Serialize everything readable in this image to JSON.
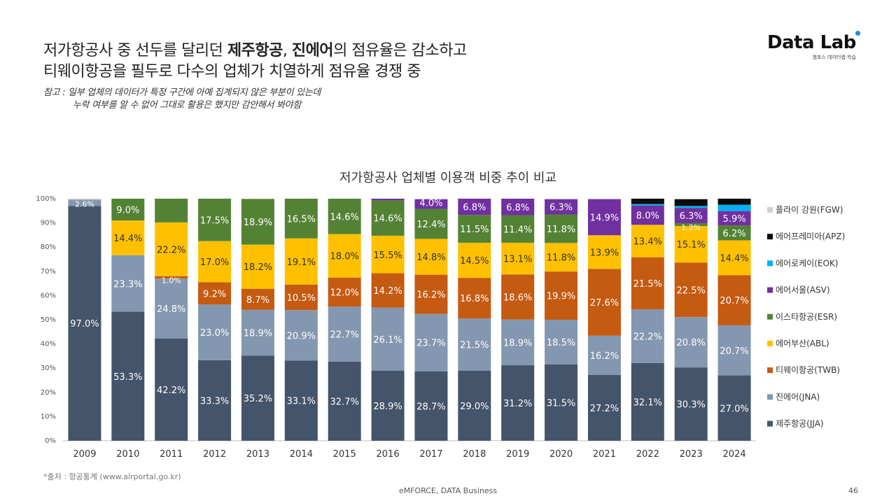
{
  "headline": {
    "line1_pre": "저가항공사 중 선두를 달리던 ",
    "line1_b1": "제주항공",
    "line1_mid": ", ",
    "line1_b2": "진에어",
    "line1_post": "의 점유율은 감소하고",
    "line2": "티웨이항공을 필두로 다수의 업체가 치열하게 점유율 경쟁 중"
  },
  "note": {
    "line1": "참고 : 일부 업체의 데이터가 특정 구간에 아예 집계되지 않은 부분이 있는데",
    "line2": "누락 여부를 알 수 없어 그대로 활용은 했지만 감안해서 봐야함"
  },
  "logo": {
    "main": "Data Lab",
    "sub": "엠포스 데이터랩 학습"
  },
  "source": "*출처 : 항공통계 (www.airportal.go.kr)",
  "footer": "eMFORCE, DATA Business",
  "page_number": "46",
  "chart_data": {
    "type": "bar",
    "stacked": true,
    "title": "저가항공사 업체별 이용객 비중 추이 비교",
    "categories": [
      "2009",
      "2010",
      "2011",
      "2012",
      "2013",
      "2014",
      "2015",
      "2016",
      "2017",
      "2018",
      "2019",
      "2020",
      "2021",
      "2022",
      "2023",
      "2024"
    ],
    "ylim": [
      0,
      100
    ],
    "yticks": [
      "0%",
      "10%",
      "20%",
      "30%",
      "40%",
      "50%",
      "60%",
      "70%",
      "80%",
      "90%",
      "100%"
    ],
    "grid": false,
    "legend_position": "right",
    "series": [
      {
        "name": "제주항공(JJA)",
        "color": "#44546a",
        "label_color": "#ffffff",
        "values": [
          97.0,
          53.3,
          42.2,
          33.3,
          35.2,
          33.1,
          32.7,
          28.9,
          28.7,
          29.0,
          31.2,
          31.5,
          27.2,
          32.1,
          30.3,
          27.0
        ],
        "labels": [
          "97.0%",
          "53.3%",
          "42.2%",
          "33.3%",
          "35.2%",
          "33.1%",
          "32.7%",
          "28.9%",
          "28.7%",
          "29.0%",
          "31.2%",
          "31.5%",
          "27.2%",
          "32.1%",
          "30.3%",
          "27.0%"
        ]
      },
      {
        "name": "진에어(JNA)",
        "color": "#8497b0",
        "label_color": "#ffffff",
        "values": [
          2.6,
          23.3,
          24.8,
          23.0,
          18.9,
          20.9,
          22.7,
          26.1,
          23.7,
          21.5,
          18.9,
          18.5,
          16.2,
          22.2,
          20.8,
          20.7
        ],
        "labels": [
          "2.6%",
          "23.3%",
          "24.8%",
          "23.0%",
          "18.9%",
          "20.9%",
          "22.7%",
          "26.1%",
          "23.7%",
          "21.5%",
          "18.9%",
          "18.5%",
          "16.2%",
          "22.2%",
          "20.8%",
          "20.7%"
        ]
      },
      {
        "name": "티웨이항공(TWB)",
        "color": "#c55a11",
        "label_color": "#ffffff",
        "values": [
          0,
          0,
          1.0,
          9.2,
          8.7,
          10.5,
          12.0,
          14.2,
          16.2,
          16.8,
          18.6,
          19.9,
          27.6,
          21.5,
          22.5,
          20.7
        ],
        "labels": [
          "",
          "",
          "1.0%",
          "9.2%",
          "8.7%",
          "10.5%",
          "12.0%",
          "14.2%",
          "16.2%",
          "16.8%",
          "18.6%",
          "19.9%",
          "27.6%",
          "21.5%",
          "22.5%",
          "20.7%"
        ]
      },
      {
        "name": "에어부산(ABL)",
        "color": "#ffc000",
        "label_color": "#333333",
        "values": [
          0,
          14.4,
          22.2,
          17.0,
          18.2,
          19.1,
          18.0,
          15.5,
          14.8,
          14.5,
          13.1,
          11.8,
          13.9,
          13.4,
          15.1,
          14.4
        ],
        "labels": [
          "",
          "14.4%",
          "22.2%",
          "17.0%",
          "18.2%",
          "19.1%",
          "18.0%",
          "15.5%",
          "14.8%",
          "14.5%",
          "13.1%",
          "11.8%",
          "13.9%",
          "13.4%",
          "15.1%",
          "14.4%"
        ]
      },
      {
        "name": "이스타항공(ESR)",
        "color": "#548235",
        "label_color": "#ffffff",
        "values": [
          0,
          9.0,
          9.8,
          17.5,
          18.9,
          16.5,
          14.6,
          14.6,
          12.4,
          11.5,
          11.4,
          11.8,
          0,
          0,
          1.2,
          6.2
        ],
        "labels": [
          "",
          "9.0%",
          "",
          "17.5%",
          "18.9%",
          "16.5%",
          "14.6%",
          "14.6%",
          "12.4%",
          "11.5%",
          "11.4%",
          "11.8%",
          "",
          "",
          "1.2%",
          "6.2%"
        ]
      },
      {
        "name": "에어서울(ASV)",
        "color": "#7030a0",
        "label_color": "#ffffff",
        "values": [
          0,
          0,
          0,
          0,
          0,
          0,
          0,
          0.7,
          4.0,
          6.8,
          6.8,
          6.3,
          14.9,
          8.0,
          6.3,
          5.9
        ],
        "labels": [
          "",
          "",
          "",
          "",
          "",
          "",
          "",
          "",
          "4.0%",
          "6.8%",
          "6.8%",
          "6.3%",
          "14.9%",
          "8.0%",
          "6.3%",
          "5.9%"
        ]
      },
      {
        "name": "에어로케이(EOK)",
        "color": "#00b0f0",
        "label_color": "#ffffff",
        "values": [
          0,
          0,
          0,
          0,
          0,
          0,
          0,
          0,
          0,
          0,
          0,
          0,
          0,
          0.6,
          0.8,
          2.6
        ],
        "labels": [
          "",
          "",
          "",
          "",
          "",
          "",
          "",
          "",
          "",
          "",
          "",
          "",
          "",
          "",
          "",
          ""
        ]
      },
      {
        "name": "에어프레미아(APZ)",
        "color": "#0a0a0a",
        "label_color": "#ffffff",
        "values": [
          0,
          0,
          0,
          0,
          0,
          0,
          0,
          0,
          0,
          0,
          0,
          0,
          0,
          2.2,
          2.8,
          2.5
        ],
        "labels": [
          "",
          "",
          "",
          "",
          "",
          "",
          "",
          "",
          "",
          "",
          "",
          "",
          "",
          "",
          "",
          ""
        ]
      },
      {
        "name": "플라이 강원(FGW)",
        "color": "#d0d0d0",
        "label_color": "#333333",
        "values": [
          0.4,
          0,
          0,
          0,
          0,
          0,
          0,
          0,
          0,
          0,
          0,
          0,
          0.2,
          0,
          0,
          0
        ],
        "labels": [
          "",
          "",
          "",
          "",
          "",
          "",
          "",
          "",
          "",
          "",
          "",
          "",
          "",
          "",
          "",
          ""
        ]
      }
    ]
  }
}
